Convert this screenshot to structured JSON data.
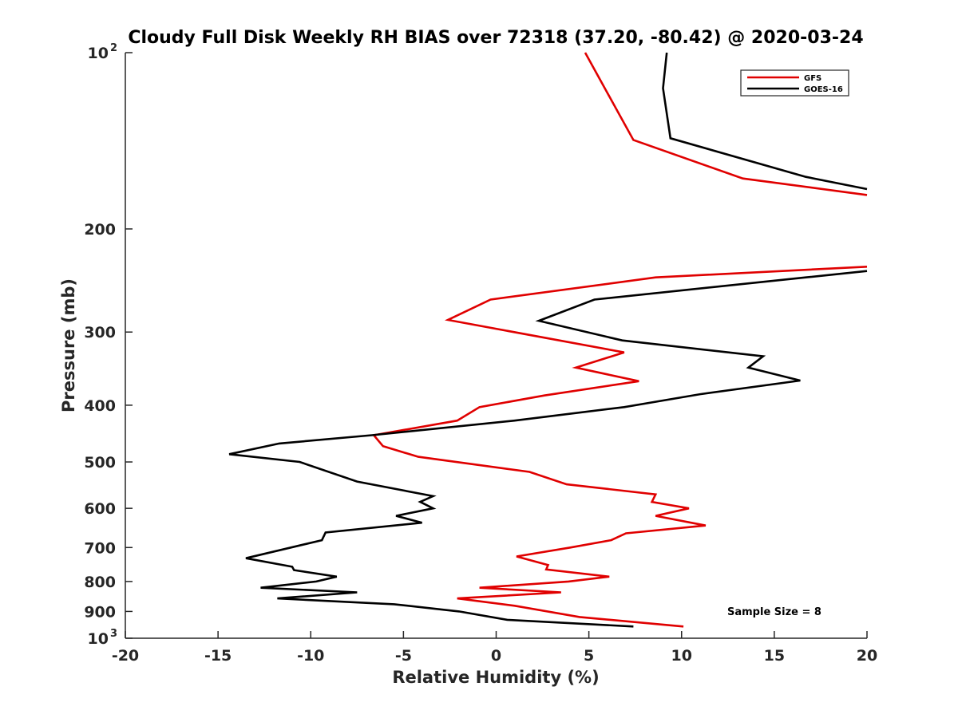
{
  "chart_data": {
    "type": "line",
    "title": "Cloudy Full Disk Weekly RH BIAS over 72318 (37.20, -80.42) @ 2020-03-24",
    "xlabel": "Relative Humidity (%)",
    "ylabel": "Pressure (mb)",
    "xlim": [
      -20,
      20
    ],
    "ylim": [
      100,
      1000
    ],
    "yscale": "log",
    "y_reversed": true,
    "grid": false,
    "x_ticks": [
      {
        "value": -20,
        "label": "-20"
      },
      {
        "value": -15,
        "label": "-15"
      },
      {
        "value": -10,
        "label": "-10"
      },
      {
        "value": -5,
        "label": "-5"
      },
      {
        "value": 0,
        "label": "0"
      },
      {
        "value": 5,
        "label": "5"
      },
      {
        "value": 10,
        "label": "10"
      },
      {
        "value": 15,
        "label": "15"
      },
      {
        "value": 20,
        "label": "20"
      }
    ],
    "y_ticks": [
      {
        "value": 100,
        "label": "10",
        "sup": "2"
      },
      {
        "value": 200,
        "label": "200"
      },
      {
        "value": 300,
        "label": "300"
      },
      {
        "value": 400,
        "label": "400"
      },
      {
        "value": 500,
        "label": "500"
      },
      {
        "value": 600,
        "label": "600"
      },
      {
        "value": 700,
        "label": "700"
      },
      {
        "value": 800,
        "label": "800"
      },
      {
        "value": 900,
        "label": "900"
      },
      {
        "value": 1000,
        "label": "10",
        "sup": "3"
      }
    ],
    "legend": {
      "position": "top-right",
      "entries": [
        "GFS",
        "GOES-16"
      ]
    },
    "annotation": "Sample Size = 8",
    "series": [
      {
        "name": "GFS",
        "color": "#e00000",
        "segments": [
          [
            {
              "x": 4.8,
              "p": 100
            },
            {
              "x": 7.4,
              "p": 141
            },
            {
              "x": 13.3,
              "p": 164
            },
            {
              "x": 20,
              "p": 175
            }
          ],
          [
            {
              "x": 20,
              "p": 232
            },
            {
              "x": 8.6,
              "p": 242
            },
            {
              "x": -0.3,
              "p": 264
            },
            {
              "x": -2.6,
              "p": 286
            },
            {
              "x": 6.9,
              "p": 325
            },
            {
              "x": 4.3,
              "p": 345
            },
            {
              "x": 7.7,
              "p": 364
            },
            {
              "x": 2.6,
              "p": 385
            },
            {
              "x": -0.9,
              "p": 403
            },
            {
              "x": -2.1,
              "p": 425
            },
            {
              "x": -6.6,
              "p": 450
            },
            {
              "x": -6.1,
              "p": 470
            },
            {
              "x": -4.2,
              "p": 490
            },
            {
              "x": 1.8,
              "p": 520
            },
            {
              "x": 3.8,
              "p": 546
            },
            {
              "x": 8.6,
              "p": 568
            },
            {
              "x": 8.4,
              "p": 585
            },
            {
              "x": 10.4,
              "p": 600
            },
            {
              "x": 8.6,
              "p": 618
            },
            {
              "x": 11.3,
              "p": 642
            },
            {
              "x": 7.0,
              "p": 662
            },
            {
              "x": 6.2,
              "p": 680
            },
            {
              "x": 4.0,
              "p": 700
            },
            {
              "x": 1.1,
              "p": 725
            },
            {
              "x": 2.8,
              "p": 750
            },
            {
              "x": 2.7,
              "p": 763
            },
            {
              "x": 6.1,
              "p": 785
            },
            {
              "x": 3.9,
              "p": 800
            },
            {
              "x": -0.9,
              "p": 820
            },
            {
              "x": 3.5,
              "p": 835
            },
            {
              "x": -2.1,
              "p": 855
            },
            {
              "x": 1.0,
              "p": 880
            },
            {
              "x": 4.5,
              "p": 920
            },
            {
              "x": 10.1,
              "p": 955
            }
          ]
        ]
      },
      {
        "name": "GOES-16",
        "color": "#000000",
        "segments": [
          [
            {
              "x": 9.2,
              "p": 100
            },
            {
              "x": 9.0,
              "p": 115
            },
            {
              "x": 9.4,
              "p": 140
            },
            {
              "x": 16.7,
              "p": 163
            },
            {
              "x": 20,
              "p": 171
            }
          ],
          [
            {
              "x": 20,
              "p": 236
            },
            {
              "x": 16.7,
              "p": 242
            },
            {
              "x": 5.3,
              "p": 264
            },
            {
              "x": 2.3,
              "p": 287
            },
            {
              "x": 6.8,
              "p": 310
            },
            {
              "x": 14.4,
              "p": 330
            },
            {
              "x": 13.6,
              "p": 345
            },
            {
              "x": 16.4,
              "p": 363
            },
            {
              "x": 11.0,
              "p": 383
            },
            {
              "x": 6.9,
              "p": 403
            },
            {
              "x": 1.0,
              "p": 425
            },
            {
              "x": -6.7,
              "p": 450
            },
            {
              "x": -11.7,
              "p": 465
            },
            {
              "x": -14.4,
              "p": 485
            },
            {
              "x": -10.6,
              "p": 500
            },
            {
              "x": -7.5,
              "p": 540
            },
            {
              "x": -3.4,
              "p": 572
            },
            {
              "x": -4.1,
              "p": 585
            },
            {
              "x": -3.4,
              "p": 600
            },
            {
              "x": -5.4,
              "p": 618
            },
            {
              "x": -4.0,
              "p": 635
            },
            {
              "x": -9.2,
              "p": 660
            },
            {
              "x": -9.4,
              "p": 680
            },
            {
              "x": -13.5,
              "p": 730
            },
            {
              "x": -11.0,
              "p": 755
            },
            {
              "x": -10.9,
              "p": 765
            },
            {
              "x": -8.6,
              "p": 785
            },
            {
              "x": -9.7,
              "p": 800
            },
            {
              "x": -12.7,
              "p": 820
            },
            {
              "x": -7.5,
              "p": 835
            },
            {
              "x": -11.8,
              "p": 855
            },
            {
              "x": -5.5,
              "p": 875
            },
            {
              "x": -2.0,
              "p": 900
            },
            {
              "x": 0.6,
              "p": 930
            },
            {
              "x": 7.4,
              "p": 955
            }
          ]
        ]
      }
    ]
  }
}
